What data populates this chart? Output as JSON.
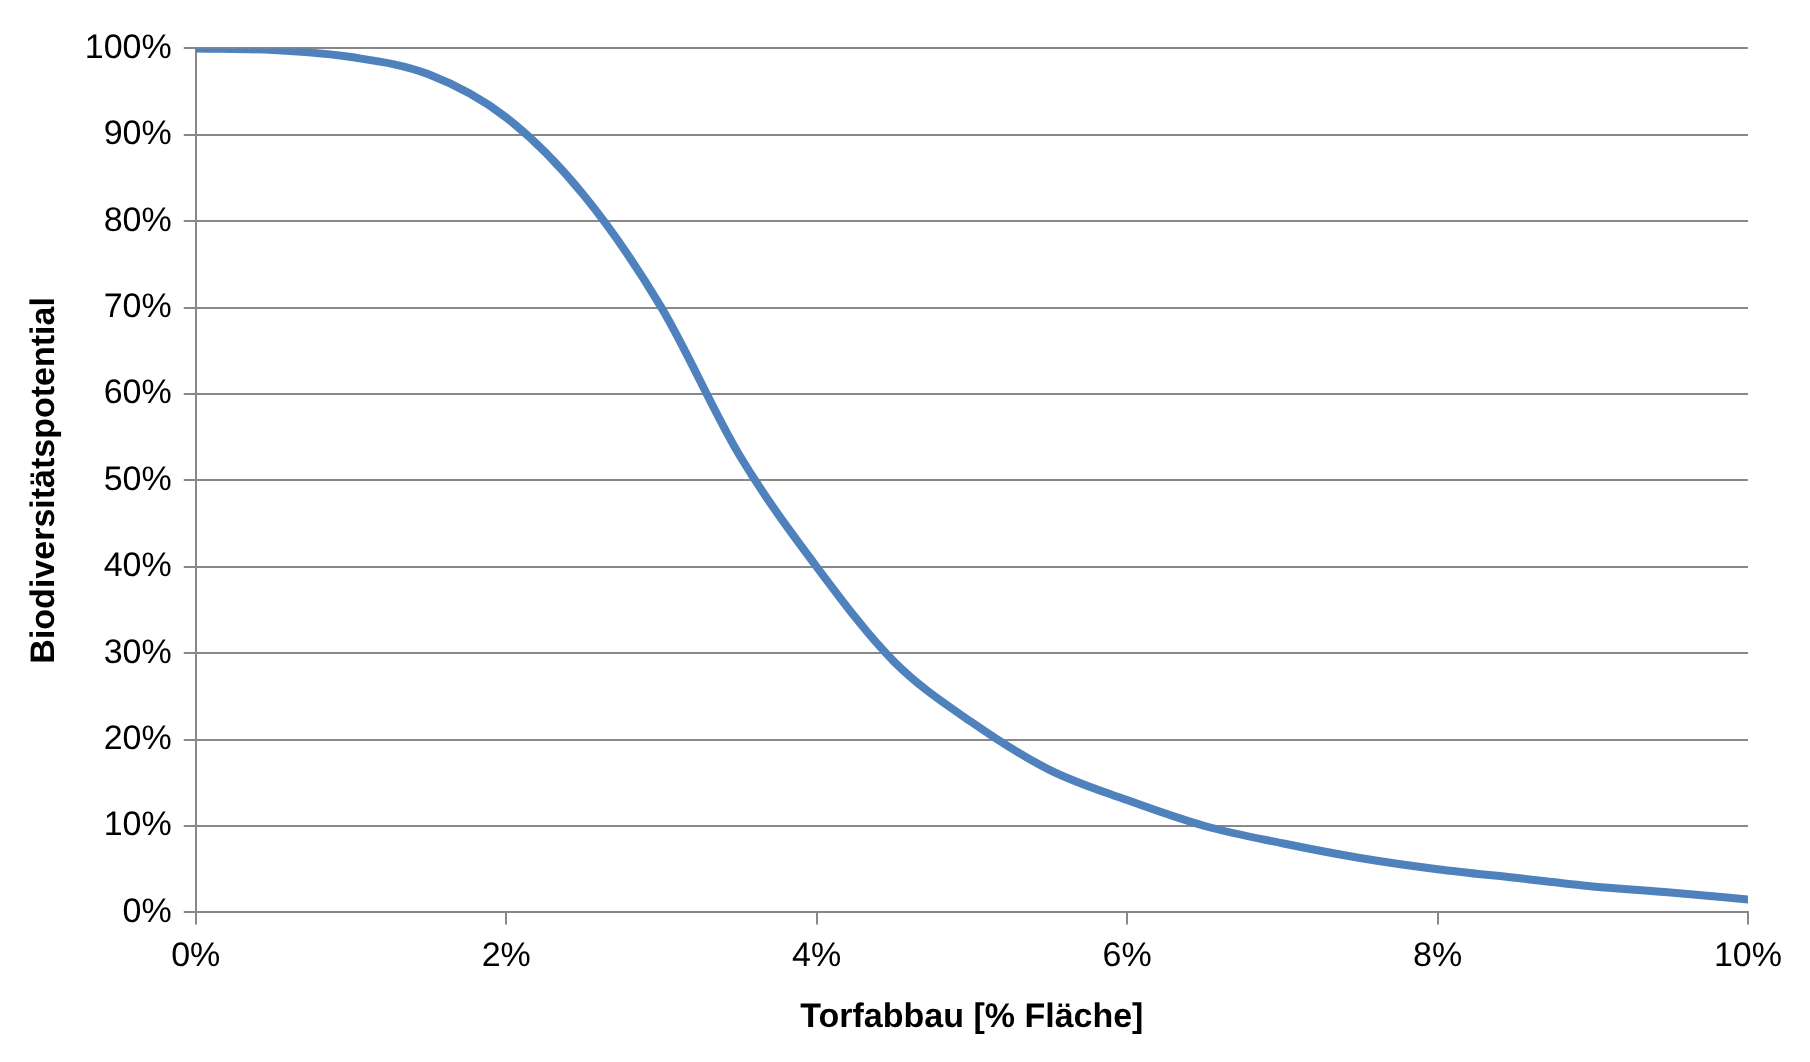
{
  "chart_data": {
    "type": "line",
    "xlabel": "Torfabbau [% Fläche]",
    "ylabel": "Biodiversitätspotential",
    "x": [
      0,
      0.5,
      1,
      1.5,
      2,
      2.5,
      3,
      3.5,
      4,
      4.5,
      5,
      5.5,
      6,
      6.5,
      7,
      7.5,
      8,
      8.5,
      9,
      9.5,
      10
    ],
    "series": [
      {
        "color": "#4f81bd",
        "values": [
          100,
          99.8,
          99,
          97,
          92,
          83,
          70,
          53,
          40,
          29,
          22,
          16.5,
          13,
          10,
          8,
          6.3,
          5,
          4,
          3,
          2.3,
          1.5
        ]
      }
    ],
    "xlim": [
      0,
      10
    ],
    "xticks": [
      {
        "value": 0,
        "label": "0%"
      },
      {
        "value": 2,
        "label": "2%"
      },
      {
        "value": 4,
        "label": "4%"
      },
      {
        "value": 6,
        "label": "6%"
      },
      {
        "value": 8,
        "label": "8%"
      },
      {
        "value": 10,
        "label": "10%"
      }
    ],
    "ylim": [
      0,
      100
    ],
    "yticks": [
      {
        "value": 0,
        "label": "0%"
      },
      {
        "value": 10,
        "label": "10%"
      },
      {
        "value": 20,
        "label": "20%"
      },
      {
        "value": 30,
        "label": "30%"
      },
      {
        "value": 40,
        "label": "40%"
      },
      {
        "value": 50,
        "label": "50%"
      },
      {
        "value": 60,
        "label": "60%"
      },
      {
        "value": 70,
        "label": "70%"
      },
      {
        "value": 80,
        "label": "80%"
      },
      {
        "value": 90,
        "label": "90%"
      },
      {
        "value": 100,
        "label": "100%"
      }
    ],
    "grid": "y",
    "legend": false,
    "marker": "none",
    "line_style": "solid"
  }
}
